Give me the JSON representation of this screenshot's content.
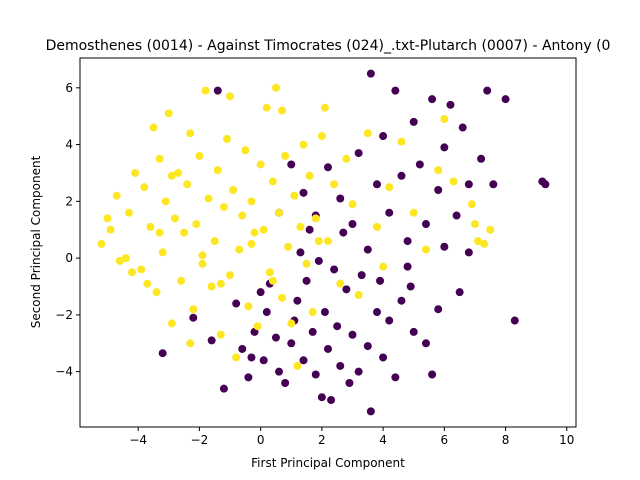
{
  "chart_data": {
    "type": "scatter",
    "title": "Demosthenes (0014) - Against Timocrates (024)_.txt-Plutarch (0007) - Antony (0",
    "xlabel": "First Principal Component",
    "ylabel": "Second Principal Component",
    "xlim": [
      -5.9,
      10.3
    ],
    "ylim": [
      -5.95,
      7.05
    ],
    "xticks": [
      -4,
      -2,
      0,
      2,
      4,
      6,
      8,
      10
    ],
    "yticks": [
      -4,
      -2,
      0,
      2,
      4,
      6
    ],
    "xtick_labels": [
      "−4",
      "−2",
      "0",
      "2",
      "4",
      "6",
      "8",
      "10"
    ],
    "ytick_labels": [
      "−4",
      "−2",
      "0",
      "2",
      "4",
      "6"
    ],
    "grid": false,
    "legend": "none",
    "colors": {
      "class_0": "#440154",
      "class_1": "#fde725"
    },
    "series": [
      {
        "color": "#440154",
        "points": [
          [
            -3.2,
            -3.35
          ],
          [
            -2.2,
            -2.1
          ],
          [
            -1.6,
            -2.9
          ],
          [
            -1.2,
            -4.6
          ],
          [
            -1.4,
            5.9
          ],
          [
            -0.6,
            -3.2
          ],
          [
            -0.4,
            -4.2
          ],
          [
            -0.2,
            -2.6
          ],
          [
            0.1,
            -3.6
          ],
          [
            0.2,
            -1.9
          ],
          [
            0.5,
            -2.8
          ],
          [
            0.6,
            -4.0
          ],
          [
            0.8,
            -4.4
          ],
          [
            1.0,
            -3.0
          ],
          [
            1.1,
            -2.2
          ],
          [
            1.2,
            -1.5
          ],
          [
            1.4,
            -3.6
          ],
          [
            1.5,
            -0.8
          ],
          [
            1.7,
            -2.6
          ],
          [
            1.8,
            -4.1
          ],
          [
            2.0,
            -4.9
          ],
          [
            2.1,
            -1.9
          ],
          [
            2.2,
            -3.2
          ],
          [
            2.4,
            -0.4
          ],
          [
            2.5,
            -2.4
          ],
          [
            2.6,
            -3.8
          ],
          [
            2.8,
            -1.1
          ],
          [
            3.0,
            -2.7
          ],
          [
            3.2,
            -4.0
          ],
          [
            3.3,
            -0.6
          ],
          [
            3.5,
            -3.1
          ],
          [
            3.6,
            -5.4
          ],
          [
            3.8,
            -1.9
          ],
          [
            4.0,
            -3.5
          ],
          [
            4.2,
            -2.2
          ],
          [
            4.4,
            -4.2
          ],
          [
            4.6,
            -1.5
          ],
          [
            4.8,
            -0.3
          ],
          [
            5.0,
            -2.6
          ],
          [
            5.4,
            -3.0
          ],
          [
            5.6,
            -4.1
          ],
          [
            5.8,
            -1.8
          ],
          [
            6.0,
            0.4
          ],
          [
            6.5,
            -1.2
          ],
          [
            1.0,
            3.3
          ],
          [
            1.4,
            2.3
          ],
          [
            1.8,
            1.5
          ],
          [
            2.2,
            3.2
          ],
          [
            2.6,
            2.1
          ],
          [
            3.0,
            1.2
          ],
          [
            3.2,
            3.7
          ],
          [
            3.5,
            0.3
          ],
          [
            3.8,
            2.6
          ],
          [
            4.0,
            4.3
          ],
          [
            4.2,
            1.6
          ],
          [
            4.4,
            5.9
          ],
          [
            4.6,
            2.9
          ],
          [
            4.8,
            0.6
          ],
          [
            5.0,
            4.8
          ],
          [
            5.2,
            3.3
          ],
          [
            5.4,
            1.2
          ],
          [
            5.6,
            5.6
          ],
          [
            5.8,
            2.4
          ],
          [
            6.0,
            3.9
          ],
          [
            6.2,
            5.4
          ],
          [
            6.4,
            1.5
          ],
          [
            6.6,
            4.6
          ],
          [
            6.8,
            2.6
          ],
          [
            7.2,
            3.5
          ],
          [
            7.4,
            5.9
          ],
          [
            7.6,
            2.6
          ],
          [
            8.0,
            5.6
          ],
          [
            8.3,
            -2.2
          ],
          [
            9.2,
            2.7
          ],
          [
            9.3,
            2.6
          ],
          [
            3.6,
            6.5
          ],
          [
            6.8,
            0.2
          ],
          [
            0.3,
            -0.9
          ],
          [
            -0.8,
            -1.6
          ],
          [
            2.7,
            0.9
          ],
          [
            1.3,
            0.2
          ],
          [
            3.9,
            -0.8
          ],
          [
            0.6,
            1.6
          ],
          [
            2.3,
            -5.0
          ],
          [
            4.9,
            -1.0
          ],
          [
            0.0,
            -1.2
          ],
          [
            1.9,
            -0.1
          ],
          [
            -0.3,
            -3.5
          ],
          [
            2.9,
            -4.4
          ],
          [
            1.6,
            1.0
          ]
        ]
      },
      {
        "color": "#fde725",
        "points": [
          [
            -5.2,
            0.5
          ],
          [
            -4.9,
            1.0
          ],
          [
            -4.7,
            2.2
          ],
          [
            -4.6,
            -0.1
          ],
          [
            -4.3,
            1.6
          ],
          [
            -4.1,
            3.0
          ],
          [
            -3.9,
            -0.4
          ],
          [
            -3.8,
            2.5
          ],
          [
            -3.6,
            1.1
          ],
          [
            -3.5,
            4.6
          ],
          [
            -3.4,
            -1.2
          ],
          [
            -3.3,
            3.5
          ],
          [
            -3.2,
            0.2
          ],
          [
            -3.1,
            2.0
          ],
          [
            -3.0,
            5.1
          ],
          [
            -2.9,
            -2.3
          ],
          [
            -2.8,
            1.4
          ],
          [
            -2.7,
            3.0
          ],
          [
            -2.6,
            -0.8
          ],
          [
            -2.5,
            0.9
          ],
          [
            -2.4,
            2.6
          ],
          [
            -2.3,
            4.4
          ],
          [
            -2.2,
            -1.8
          ],
          [
            -2.1,
            1.2
          ],
          [
            -2.0,
            3.6
          ],
          [
            -1.9,
            -0.2
          ],
          [
            -1.8,
            5.9
          ],
          [
            -1.7,
            2.1
          ],
          [
            -1.6,
            -1.0
          ],
          [
            -1.5,
            0.6
          ],
          [
            -1.4,
            3.1
          ],
          [
            -1.3,
            -2.7
          ],
          [
            -1.2,
            1.8
          ],
          [
            -1.1,
            4.2
          ],
          [
            -1.0,
            -0.6
          ],
          [
            -0.9,
            2.4
          ],
          [
            -0.8,
            -3.5
          ],
          [
            -0.7,
            0.3
          ],
          [
            -0.6,
            1.5
          ],
          [
            -0.5,
            3.8
          ],
          [
            -0.4,
            -1.7
          ],
          [
            -0.3,
            2.0
          ],
          [
            -0.2,
            0.9
          ],
          [
            -0.1,
            -2.4
          ],
          [
            0.0,
            3.3
          ],
          [
            0.1,
            1.0
          ],
          [
            0.2,
            5.3
          ],
          [
            0.3,
            -0.5
          ],
          [
            0.4,
            2.7
          ],
          [
            0.5,
            6.0
          ],
          [
            0.6,
            1.6
          ],
          [
            0.7,
            -1.4
          ],
          [
            0.8,
            3.6
          ],
          [
            0.9,
            0.4
          ],
          [
            1.0,
            -2.3
          ],
          [
            1.1,
            2.2
          ],
          [
            1.2,
            -3.8
          ],
          [
            1.3,
            1.1
          ],
          [
            1.4,
            4.0
          ],
          [
            1.5,
            -0.2
          ],
          [
            1.6,
            2.9
          ],
          [
            1.7,
            -1.9
          ],
          [
            1.8,
            1.4
          ],
          [
            2.0,
            4.3
          ],
          [
            2.2,
            0.6
          ],
          [
            2.4,
            2.6
          ],
          [
            2.6,
            -0.9
          ],
          [
            2.8,
            3.5
          ],
          [
            3.0,
            1.9
          ],
          [
            3.2,
            -1.3
          ],
          [
            3.5,
            4.4
          ],
          [
            3.8,
            1.1
          ],
          [
            4.0,
            -0.3
          ],
          [
            4.2,
            2.5
          ],
          [
            4.6,
            4.1
          ],
          [
            5.0,
            1.6
          ],
          [
            5.4,
            0.3
          ],
          [
            5.8,
            3.1
          ],
          [
            6.0,
            4.9
          ],
          [
            6.3,
            2.7
          ],
          [
            6.9,
            1.9
          ],
          [
            7.0,
            1.2
          ],
          [
            7.1,
            0.6
          ],
          [
            7.3,
            0.5
          ],
          [
            7.5,
            1.0
          ],
          [
            -4.4,
            0.0
          ],
          [
            -3.7,
            -0.9
          ],
          [
            -2.9,
            2.9
          ],
          [
            -1.3,
            -0.9
          ],
          [
            0.4,
            -0.8
          ],
          [
            -2.3,
            -3.0
          ],
          [
            -1.0,
            5.7
          ],
          [
            0.7,
            5.2
          ],
          [
            2.1,
            5.3
          ],
          [
            -5.0,
            1.4
          ],
          [
            -4.2,
            -0.5
          ],
          [
            -3.3,
            0.9
          ],
          [
            -1.9,
            0.1
          ],
          [
            -0.3,
            0.5
          ],
          [
            1.9,
            0.6
          ]
        ]
      }
    ]
  }
}
